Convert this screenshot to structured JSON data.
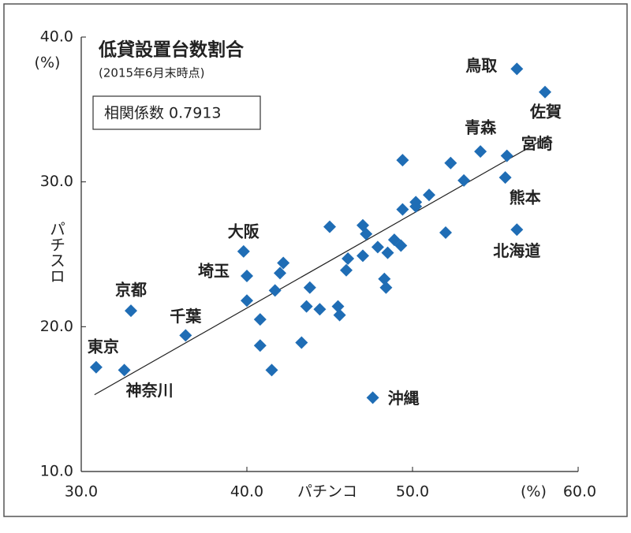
{
  "chart_data": {
    "type": "scatter",
    "title": "低貸設置台数割合",
    "subtitle": "(2015年6月末時点)",
    "annotation": "相関係数 0.7913",
    "xlabel": "パチンコ",
    "ylabel": "パチスロ",
    "xunit": "(%)",
    "yunit": "(%)",
    "xlim": [
      30,
      60
    ],
    "ylim": [
      10,
      40
    ],
    "xticks": [
      {
        "value": 30,
        "label": "30.0"
      },
      {
        "value": 40,
        "label": "40.0"
      },
      {
        "value": 50,
        "label": "50.0"
      },
      {
        "value": 60,
        "label": "60.0"
      }
    ],
    "yticks": [
      {
        "value": 10,
        "label": "10.0"
      },
      {
        "value": 20,
        "label": "20.0"
      },
      {
        "value": 30,
        "label": "30.0"
      },
      {
        "value": 40,
        "label": "40.0"
      }
    ],
    "color": "#1f6db5",
    "trend_line": {
      "x": [
        30.8,
        58.0
      ],
      "y": [
        15.3,
        33.0
      ]
    },
    "x": [
      56.3,
      58.0,
      54.1,
      55.7,
      55.6,
      56.3,
      39.8,
      40.0,
      33.0,
      36.3,
      30.9,
      32.6,
      47.6,
      49.4,
      52.3,
      53.1,
      51.0,
      50.2,
      50.2,
      49.4,
      45.0,
      47.0,
      47.2,
      52.0,
      48.9,
      47.9,
      49.3,
      48.5,
      47.0,
      46.1,
      46.0,
      42.2,
      42.0,
      48.3,
      48.4,
      43.8,
      41.7,
      40.0,
      43.6,
      44.4,
      45.5,
      45.6,
      40.8,
      40.8,
      43.3,
      41.5
    ],
    "y": [
      37.8,
      36.2,
      32.1,
      31.8,
      30.3,
      26.7,
      25.2,
      23.5,
      21.1,
      19.4,
      17.2,
      17.0,
      15.1,
      31.5,
      31.3,
      30.1,
      29.1,
      28.6,
      28.3,
      28.1,
      26.9,
      27.0,
      26.4,
      26.5,
      26.0,
      25.5,
      25.6,
      25.1,
      24.9,
      24.7,
      23.9,
      24.4,
      23.7,
      23.3,
      22.7,
      22.7,
      22.5,
      21.8,
      21.4,
      21.2,
      21.4,
      20.8,
      20.5,
      18.7,
      18.9,
      17.0
    ],
    "labels": [
      "鳥取",
      "佐賀",
      "青森",
      "宮崎",
      "熊本",
      "北海道",
      "大阪",
      "埼玉",
      "京都",
      "千葉",
      "東京",
      "神奈川",
      "沖縄",
      null,
      null,
      null,
      null,
      null,
      null,
      null,
      null,
      null,
      null,
      null,
      null,
      null,
      null,
      null,
      null,
      null,
      null,
      null,
      null,
      null,
      null,
      null,
      null,
      null,
      null,
      null,
      null,
      null,
      null,
      null,
      null,
      null
    ]
  }
}
